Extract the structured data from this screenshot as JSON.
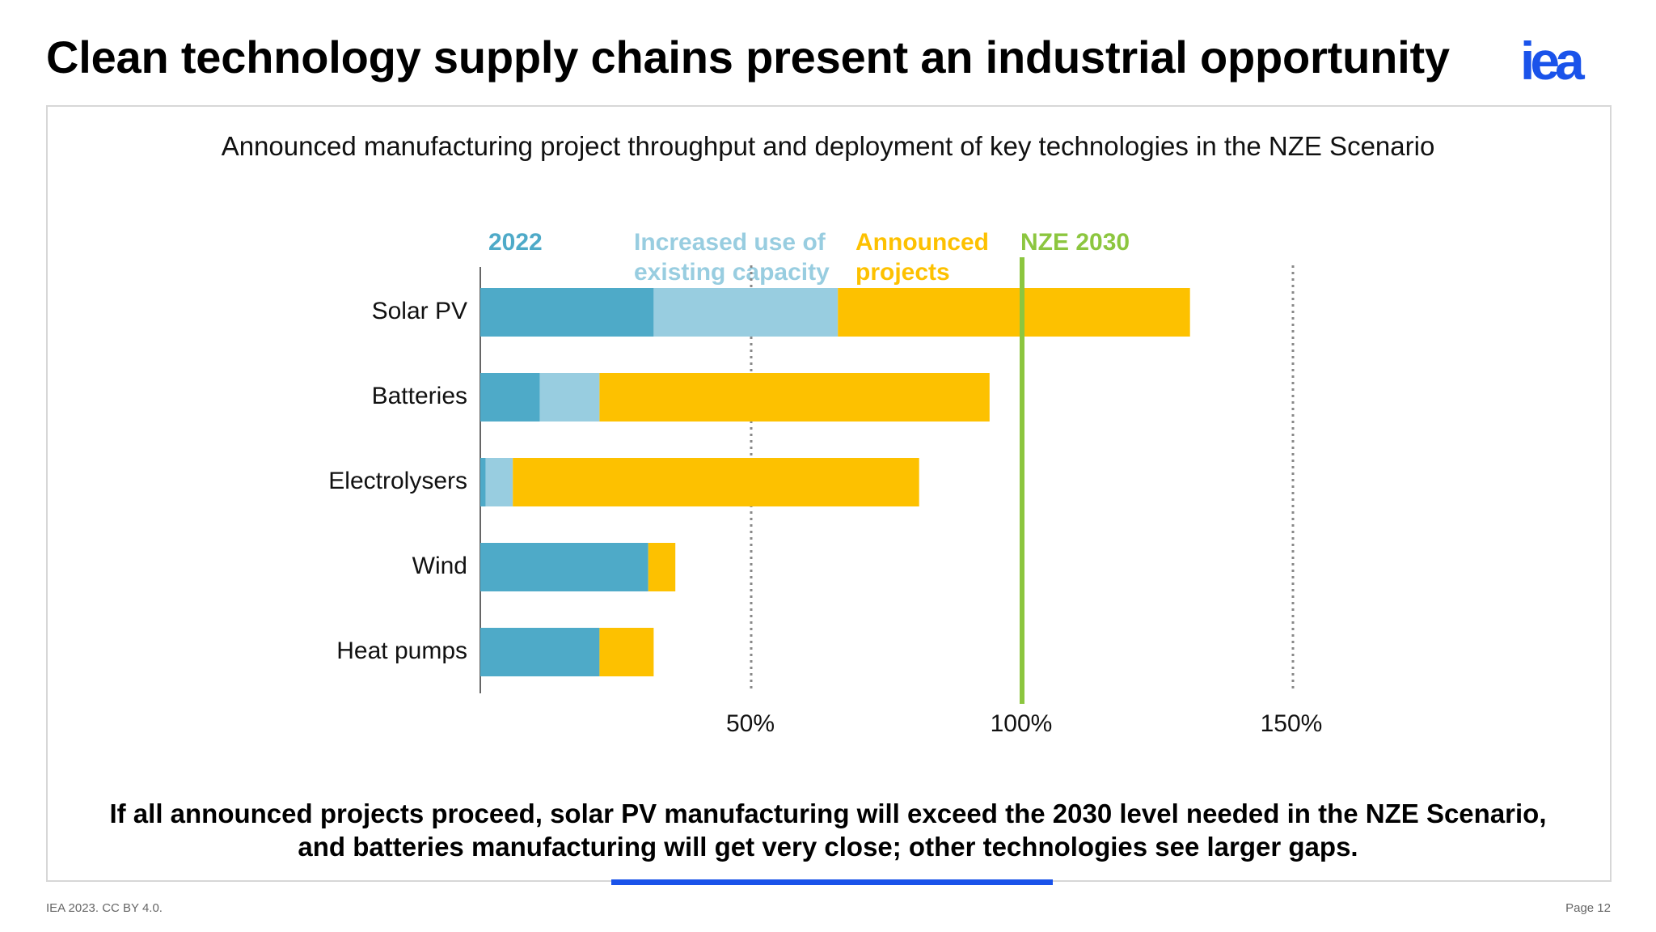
{
  "slide": {
    "title": "Clean technology supply chains present an industrial opportunity",
    "logo_text": "iea",
    "footer_left": "IEA 2023. CC BY 4.0.",
    "footer_right": "Page 12",
    "conclusion_line1": "If all announced projects proceed, solar PV manufacturing will exceed the 2030 level needed in the NZE Scenario,",
    "conclusion_line2": "and batteries manufacturing will get very close; other technologies see larger gaps."
  },
  "colors": {
    "c2022": "#4eaac8",
    "existing": "#98cde0",
    "announced": "#fdc100",
    "nze": "#8cc63f",
    "brand": "#1a53ea"
  },
  "chart_data": {
    "type": "bar",
    "orientation": "horizontal",
    "stacked": true,
    "title": "Announced manufacturing project throughput and deployment of key technologies in the NZE Scenario",
    "categories": [
      "Solar PV",
      "Batteries",
      "Electrolysers",
      "Wind",
      "Heat pumps"
    ],
    "series": [
      {
        "name": "2022",
        "color_key": "c2022",
        "values": [
          32,
          11,
          1,
          31,
          22
        ]
      },
      {
        "name": "Increased use of\nexisting capacity",
        "color_key": "existing",
        "values": [
          34,
          11,
          5,
          0,
          0
        ]
      },
      {
        "name": "Announced\nprojects",
        "color_key": "announced",
        "values": [
          65,
          72,
          75,
          5,
          10
        ]
      }
    ],
    "reference_line": {
      "name": "NZE 2030",
      "value": 100,
      "color_key": "nze"
    },
    "x_ticks": [
      50,
      100,
      150
    ],
    "x_tick_labels": [
      "50%",
      "100%",
      "150%"
    ],
    "xlim": [
      0,
      200
    ],
    "gridlines": "dotted at 50% and 150%"
  }
}
